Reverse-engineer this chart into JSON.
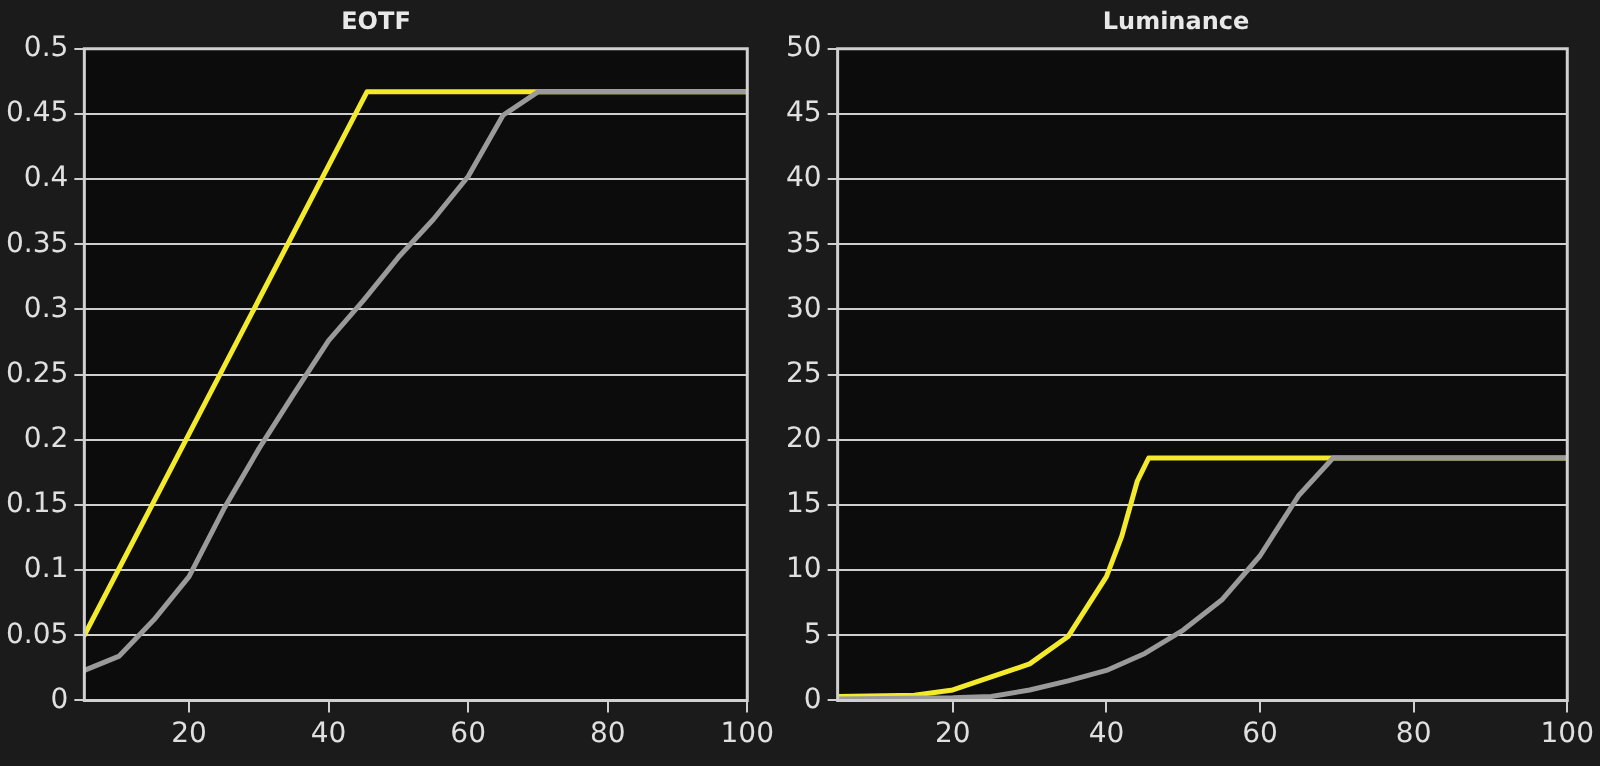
{
  "chart_data": [
    {
      "type": "line",
      "title": "EOTF",
      "xlim": [
        5,
        100
      ],
      "xticks": [
        20,
        40,
        60,
        80,
        100
      ],
      "ylim": [
        0,
        0.5
      ],
      "yticks": [
        0,
        0.05,
        0.1,
        0.15,
        0.2,
        0.25,
        0.3,
        0.35,
        0.4,
        0.45,
        0.5
      ],
      "grid": "y",
      "legend": false,
      "marker": "none",
      "line_style": "solid",
      "series": [
        {
          "color": "#9a9a9a",
          "x": [
            5,
            10,
            15,
            20,
            25,
            30,
            35,
            40,
            45,
            50,
            55,
            60,
            65,
            70,
            100
          ],
          "values": [
            0.023,
            0.034,
            0.062,
            0.095,
            0.147,
            0.193,
            0.235,
            0.276,
            0.307,
            0.34,
            0.369,
            0.402,
            0.449,
            0.467,
            0.467
          ]
        },
        {
          "color": "#f2ea2a",
          "x": [
            5,
            45.5,
            100
          ],
          "values": [
            0.05,
            0.467,
            0.467
          ]
        }
      ]
    },
    {
      "type": "line",
      "title": "Luminance",
      "xlim": [
        5,
        100
      ],
      "xticks": [
        20,
        40,
        60,
        80,
        100
      ],
      "ylim": [
        0,
        50
      ],
      "yticks": [
        0,
        5,
        10,
        15,
        20,
        25,
        30,
        35,
        40,
        45,
        50
      ],
      "grid": "y",
      "legend": false,
      "marker": "none",
      "line_style": "solid",
      "series": [
        {
          "color": "#9a9a9a",
          "x": [
            5,
            20,
            25,
            30,
            35,
            40,
            45,
            50,
            55,
            60,
            65,
            69.5,
            100
          ],
          "values": [
            0.1,
            0.2,
            0.3,
            0.8,
            1.5,
            2.3,
            3.6,
            5.4,
            7.7,
            11.1,
            15.7,
            18.6,
            18.6
          ]
        },
        {
          "color": "#f2ea2a",
          "x": [
            5,
            15,
            20,
            25,
            30,
            35,
            40,
            42,
            44,
            45.5,
            100
          ],
          "values": [
            0.3,
            0.4,
            0.8,
            1.8,
            2.8,
            4.9,
            9.5,
            12.6,
            16.8,
            18.6,
            18.6
          ]
        }
      ]
    }
  ]
}
